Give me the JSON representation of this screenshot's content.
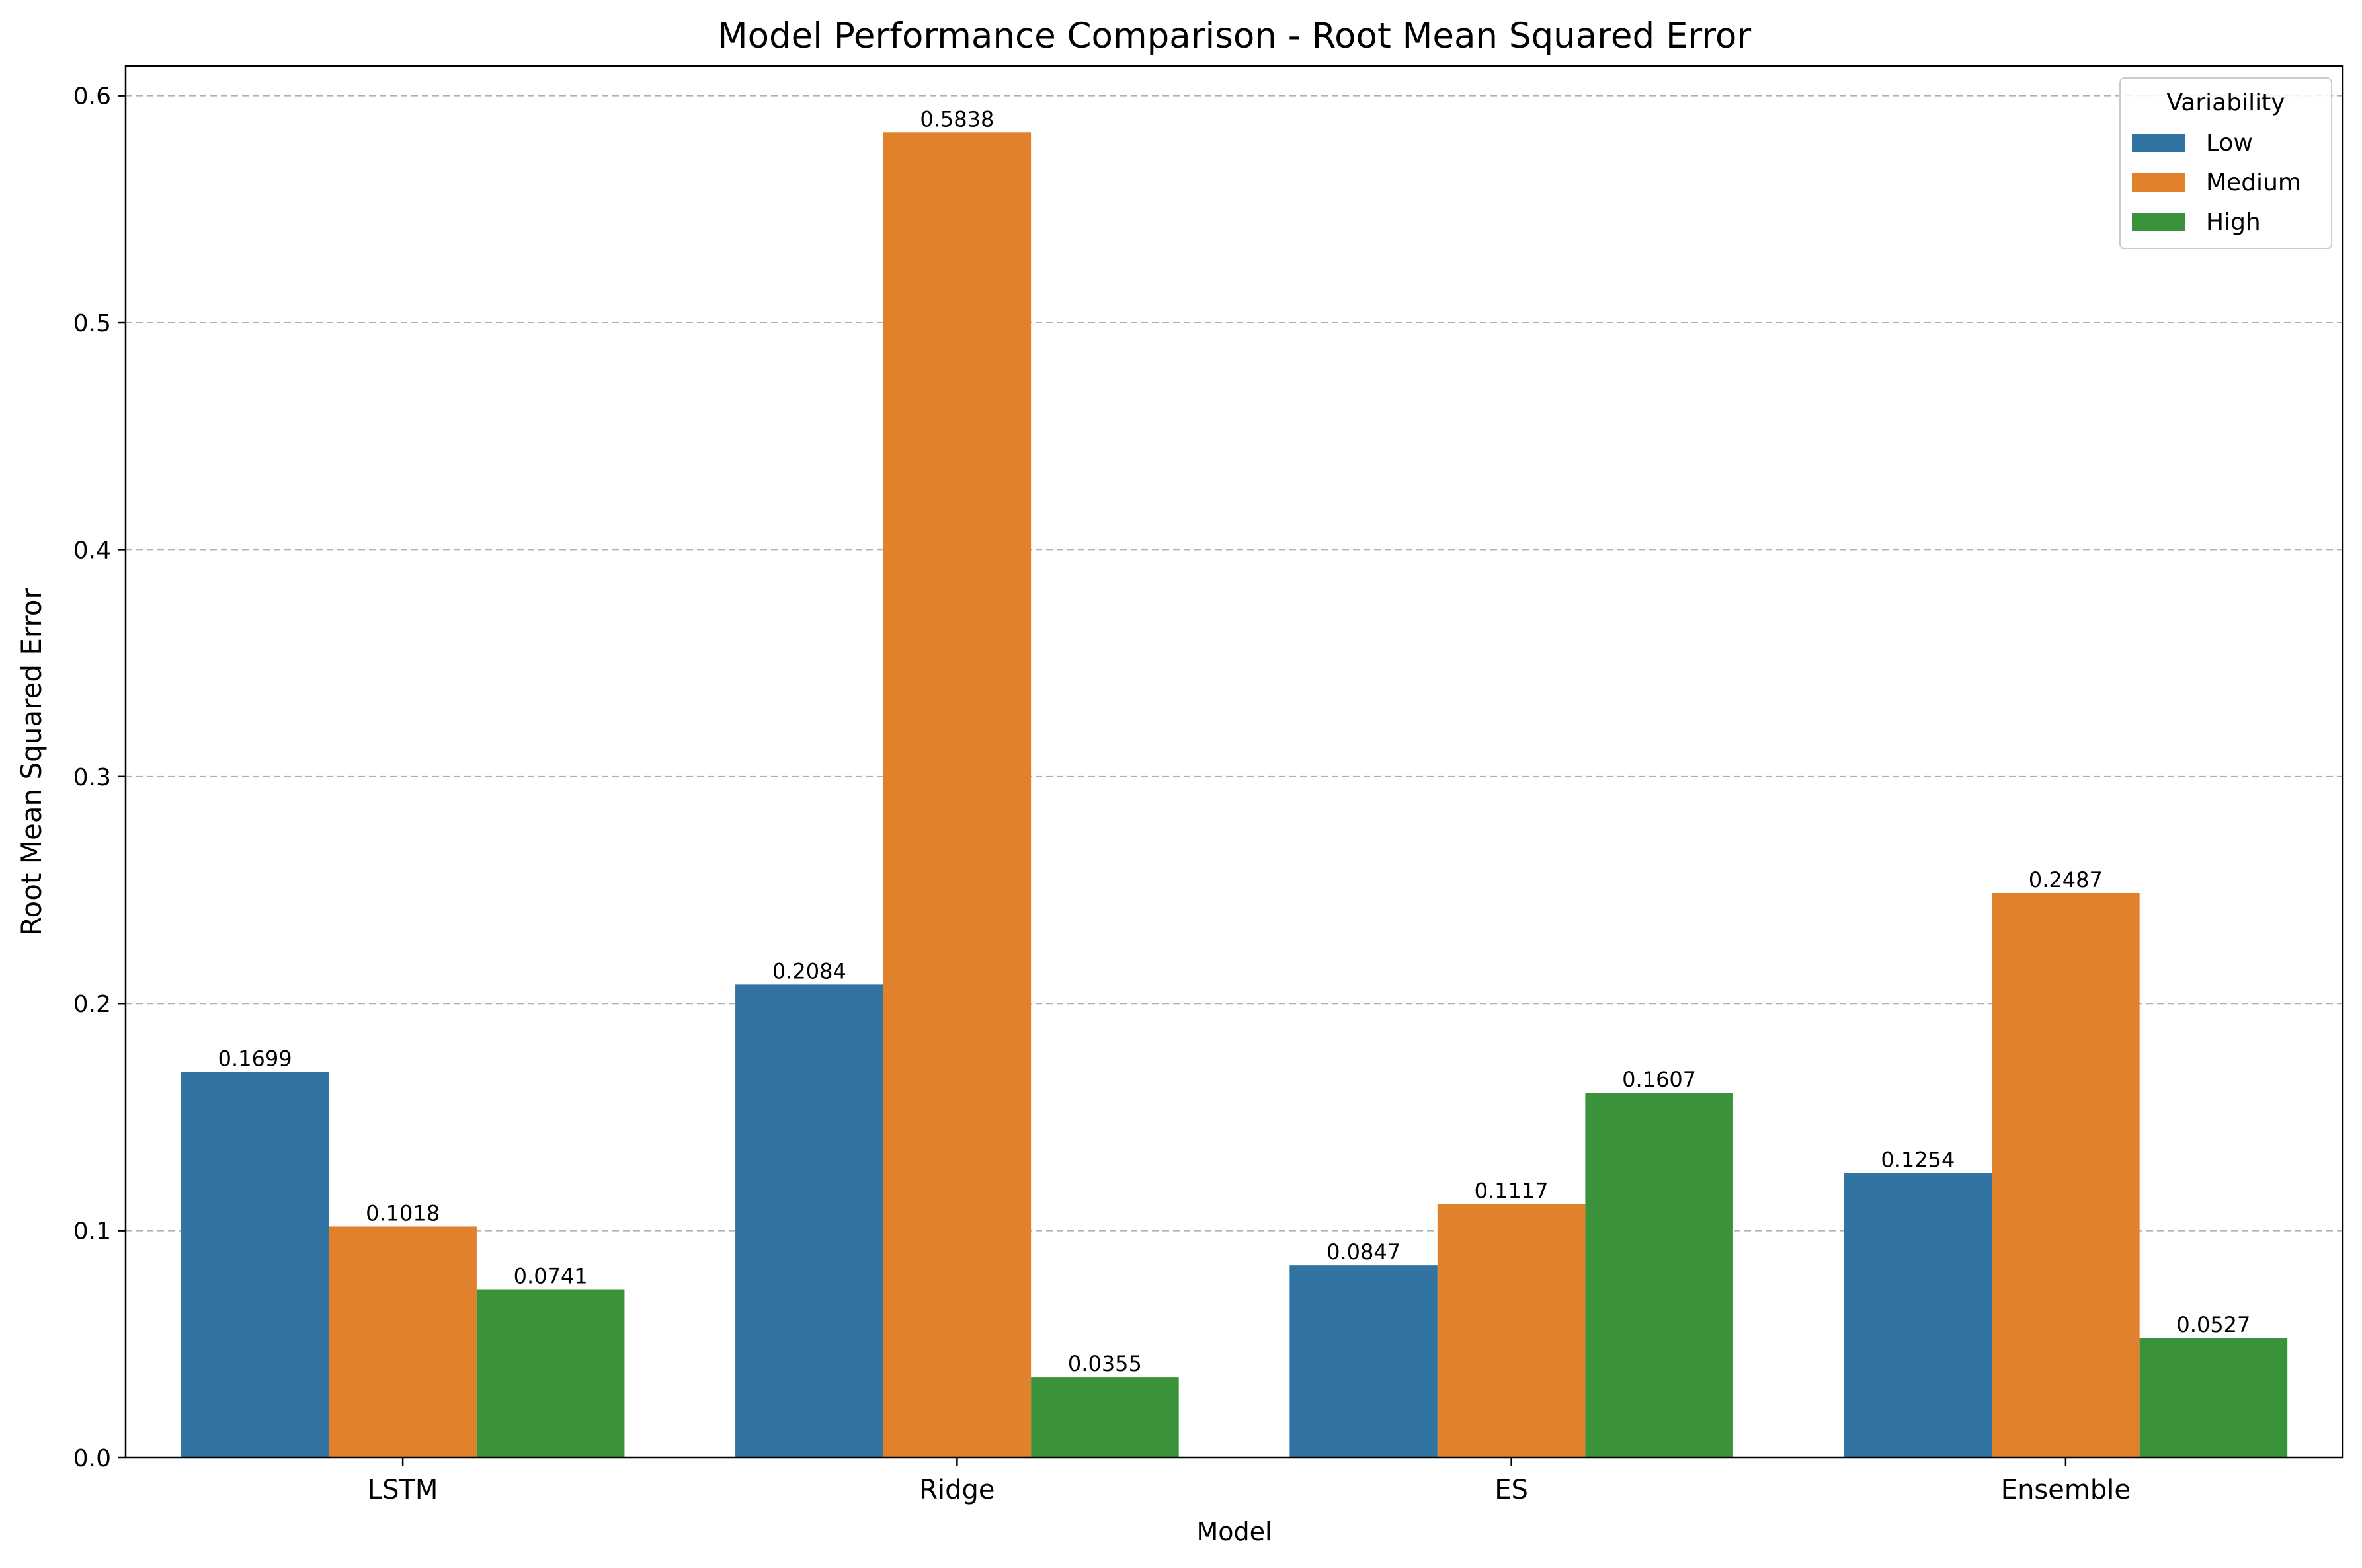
{
  "chart_data": {
    "type": "bar",
    "title": "Model Performance Comparison - Root Mean Squared Error",
    "xlabel": "Model",
    "ylabel": "Root Mean Squared Error",
    "categories": [
      "LSTM",
      "Ridge",
      "ES",
      "Ensemble"
    ],
    "series": [
      {
        "name": "Low",
        "color": "#3274a1",
        "values": [
          0.1699,
          0.2084,
          0.0847,
          0.1254
        ],
        "labels": [
          "0.1699",
          "0.2084",
          "0.0847",
          "0.1254"
        ]
      },
      {
        "name": "Medium",
        "color": "#e1812c",
        "values": [
          0.1018,
          0.5838,
          0.1117,
          0.2487
        ],
        "labels": [
          "0.1018",
          "0.5838",
          "0.1117",
          "0.2487"
        ]
      },
      {
        "name": "High",
        "color": "#3a923a",
        "values": [
          0.0741,
          0.0355,
          0.1607,
          0.0527
        ],
        "labels": [
          "0.0741",
          "0.0355",
          "0.1607",
          "0.0527"
        ]
      }
    ],
    "ylim": [
      0,
      0.613
    ],
    "yticks": [
      "0.0",
      "0.1",
      "0.2",
      "0.3",
      "0.4",
      "0.5",
      "0.6"
    ],
    "grid": "y-dashed",
    "legend": {
      "title": "Variability",
      "placement": "top-right"
    }
  }
}
